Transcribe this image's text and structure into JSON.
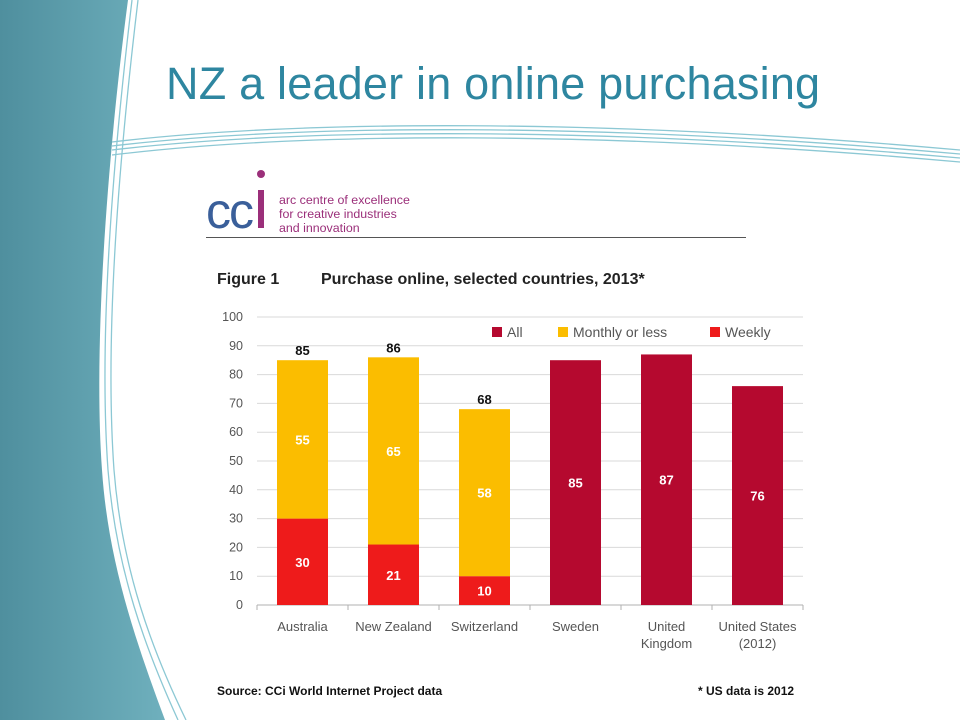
{
  "slide": {
    "title": "NZ a leader in online purchasing"
  },
  "logo": {
    "mark": "CCi",
    "tagline": [
      "arc centre of excellence",
      "for creative industries",
      "and innovation"
    ],
    "colors": {
      "cc": "#3a5f9a",
      "i": "#9b2f7a",
      "dot": "#9b2f7a"
    }
  },
  "figure": {
    "label": "Figure 1",
    "title": "Purchase online, selected countries, 2013*",
    "source": "Source: CCi World Internet Project data",
    "note": "* US data is 2012"
  },
  "chart_data": {
    "type": "bar",
    "stacked": true,
    "categories": [
      [
        "Australia"
      ],
      [
        "New Zealand"
      ],
      [
        "Switzerland"
      ],
      [
        "Sweden"
      ],
      [
        "United",
        "Kingdom"
      ],
      [
        "United States",
        "(2012)"
      ]
    ],
    "series": [
      {
        "name": "All",
        "color": "#b5092f",
        "values": [
          null,
          null,
          null,
          85,
          87,
          76
        ]
      },
      {
        "name": "Monthly or less",
        "color": "#fbbd00",
        "values": [
          55,
          65,
          58,
          null,
          null,
          null
        ]
      },
      {
        "name": "Weekly",
        "color": "#ee1b1b",
        "values": [
          30,
          21,
          10,
          null,
          null,
          null
        ]
      }
    ],
    "totals": [
      85,
      86,
      68,
      null,
      null,
      null
    ],
    "ylim": [
      0,
      100
    ],
    "yticks": [
      0,
      10,
      20,
      30,
      40,
      50,
      60,
      70,
      80,
      90,
      100
    ],
    "grid": true,
    "legend_position": "top-right"
  }
}
